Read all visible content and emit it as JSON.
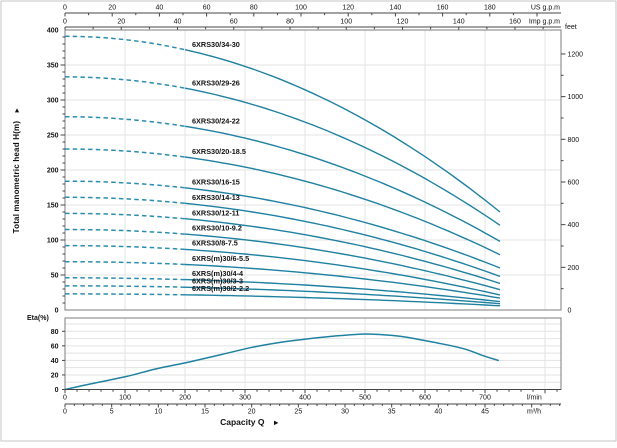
{
  "page": {
    "background": "#ffffff",
    "border_color": "#c6c6c6"
  },
  "axis_titles": {
    "y": "Total manometric head H(m)",
    "x": "Capacity Q",
    "eta": "Eta(%)",
    "arrow": "►"
  },
  "unit_labels": {
    "us": "US g.p.m",
    "imp": "Imp g.p.m",
    "feet": "feet",
    "lmin": "l/min",
    "m3h": "m³/h"
  },
  "colors": {
    "curve": "#1f81a1",
    "curve_dashed": "#2a8db0",
    "grid": "#e3e3e3",
    "frame": "#7d7d7d",
    "ruler": "#444444",
    "text": "#111111"
  },
  "chart_data": [
    {
      "id": "head-capacity",
      "type": "line",
      "title": "",
      "ylabel": "Total manometric head H(m)",
      "xlabel": "Capacity Q",
      "ylim": [
        0,
        400
      ],
      "y_unit": "m",
      "y_ticks": [
        0,
        50,
        100,
        150,
        200,
        250,
        300,
        350,
        400
      ],
      "y2_unit": "feet",
      "y2_ticks": [
        0,
        200,
        400,
        600,
        800,
        1000,
        1200
      ],
      "x_unit_primary": "l/min",
      "x_ticks_lmin": [
        0,
        100,
        200,
        300,
        400,
        500,
        600,
        700
      ],
      "x_unit_secondary": "m³/h",
      "x_ticks_m3h": [
        0,
        5,
        10,
        15,
        20,
        25,
        30,
        35,
        40,
        45
      ],
      "x_unit_top1": "US g.p.m",
      "x_ticks_us": [
        0,
        20,
        40,
        60,
        80,
        100,
        120,
        140,
        160,
        180
      ],
      "x_unit_top2": "Imp g.p.m",
      "x_ticks_imp": [
        0,
        20,
        40,
        60,
        80,
        100,
        120,
        140,
        160
      ],
      "grid": true,
      "q_max_lmin": 725,
      "dashed_until_lmin": 210,
      "curve_shape": "head = head_at_0 - (head_at_0 - head_at_qmax) * (Q/q_max_lmin)^2",
      "series": [
        {
          "name": "6XRS30/34-30",
          "head_at_0": 391,
          "head_at_qmax": 140
        },
        {
          "name": "6XRS30/29-26",
          "head_at_0": 333,
          "head_at_qmax": 121
        },
        {
          "name": "6XRS30/24-22",
          "head_at_0": 276,
          "head_at_qmax": 98
        },
        {
          "name": "6XRS30/20-18.5",
          "head_at_0": 230,
          "head_at_qmax": 79
        },
        {
          "name": "6XRS30/16-15",
          "head_at_0": 184,
          "head_at_qmax": 60
        },
        {
          "name": "6XRS30/14-13",
          "head_at_0": 161,
          "head_at_qmax": 48
        },
        {
          "name": "6XRS30/12-11",
          "head_at_0": 138,
          "head_at_qmax": 38
        },
        {
          "name": "6XRS30/10-9.2",
          "head_at_0": 115,
          "head_at_qmax": 29
        },
        {
          "name": "6XRS30/8-7.5",
          "head_at_0": 92,
          "head_at_qmax": 21.5
        },
        {
          "name": "6XRS(m)30/6-5.5",
          "head_at_0": 69,
          "head_at_qmax": 17
        },
        {
          "name": "6XRS(m)30/4-4",
          "head_at_0": 46,
          "head_at_qmax": 12
        },
        {
          "name": "6XRS(m)30/3-3",
          "head_at_0": 34.5,
          "head_at_qmax": 9
        },
        {
          "name": "6XRS(m)30/2-2.2",
          "head_at_0": 23,
          "head_at_qmax": 6
        }
      ]
    },
    {
      "id": "efficiency",
      "type": "line",
      "ylabel": "Eta(%)",
      "ylim": [
        0,
        80
      ],
      "y_ticks": [
        0,
        20,
        40,
        60,
        80
      ],
      "x_unit": "l/min",
      "grid": true,
      "points": [
        [
          0,
          0
        ],
        [
          50,
          9
        ],
        [
          103,
          18
        ],
        [
          150,
          28
        ],
        [
          208,
          38
        ],
        [
          260,
          48
        ],
        [
          312,
          58
        ],
        [
          360,
          65
        ],
        [
          408,
          70
        ],
        [
          450,
          73.5
        ],
        [
          490,
          76
        ],
        [
          520,
          75.8
        ],
        [
          560,
          73
        ],
        [
          620,
          64
        ],
        [
          665,
          56
        ],
        [
          695,
          47
        ],
        [
          722,
          40
        ]
      ]
    }
  ]
}
